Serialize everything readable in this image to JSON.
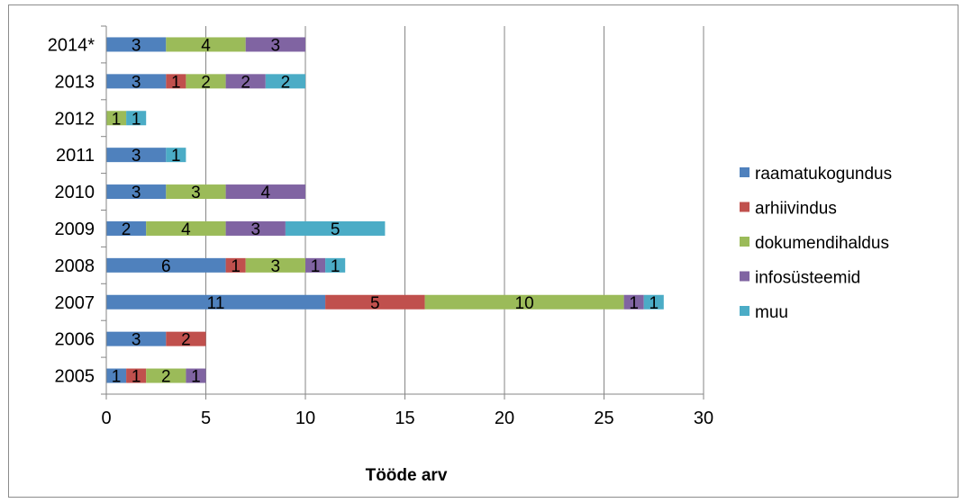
{
  "chart_data": {
    "type": "bar",
    "orientation": "horizontal",
    "stacked": true,
    "title": "",
    "xlabel": "Tööde arv",
    "ylabel": "",
    "xlim": [
      0,
      30
    ],
    "x_ticks": [
      "0",
      "5",
      "10",
      "15",
      "20",
      "25",
      "30"
    ],
    "grid": "vertical major gridlines",
    "legend_position": "right",
    "categories": [
      "2005",
      "2006",
      "2007",
      "2008",
      "2009",
      "2010",
      "2011",
      "2012",
      "2013",
      "2014*"
    ],
    "series": [
      {
        "name": "raamatukogundus",
        "color": "#4f81bd",
        "values": [
          1,
          3,
          11,
          6,
          2,
          3,
          3,
          0,
          3,
          3
        ]
      },
      {
        "name": "arhiivindus",
        "color": "#c0504d",
        "values": [
          1,
          2,
          5,
          1,
          0,
          0,
          0,
          0,
          1,
          0
        ]
      },
      {
        "name": "dokumendihaldus",
        "color": "#9bbb59",
        "values": [
          2,
          0,
          10,
          3,
          4,
          3,
          0,
          1,
          2,
          4
        ]
      },
      {
        "name": "infosüsteemid",
        "color": "#8064a2",
        "values": [
          1,
          0,
          1,
          1,
          3,
          4,
          0,
          0,
          2,
          3
        ]
      },
      {
        "name": "muu",
        "color": "#4bacc6",
        "values": [
          0,
          0,
          1,
          1,
          5,
          0,
          1,
          1,
          2,
          0
        ]
      }
    ]
  }
}
